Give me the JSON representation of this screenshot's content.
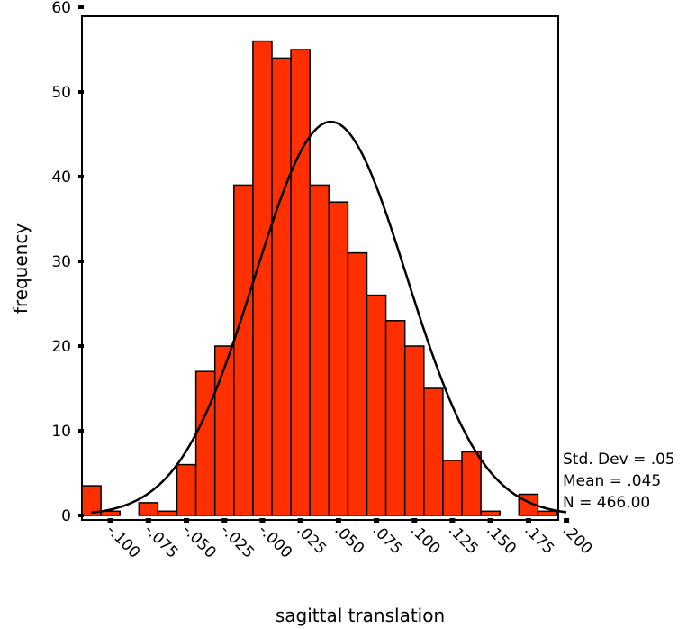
{
  "chart_data": {
    "type": "bar",
    "subtype": "histogram",
    "xlabel": "sagittal translation",
    "ylabel": "frequency",
    "x_ticks": [
      "-.100",
      "-.075",
      "-.050",
      "-.025",
      "-.000",
      ".025",
      ".050",
      ".075",
      ".100",
      ".125",
      ".150",
      ".175",
      ".200"
    ],
    "y_ticks": [
      "0",
      "10",
      "20",
      "30",
      "40",
      "50",
      "60"
    ],
    "ylim": [
      0,
      60
    ],
    "bin_centers": [
      -0.1125,
      -0.1,
      -0.0875,
      -0.075,
      -0.0625,
      -0.05,
      -0.0375,
      -0.025,
      -0.0125,
      0.0,
      0.0125,
      0.025,
      0.0375,
      0.05,
      0.0625,
      0.075,
      0.0875,
      0.1,
      0.1125,
      0.125,
      0.1375,
      0.15,
      0.1625,
      0.175,
      0.1875,
      0.2
    ],
    "values": [
      3.5,
      0.5,
      0,
      1.5,
      0.5,
      6,
      17,
      20,
      39,
      56,
      54,
      55,
      39,
      37,
      31,
      26,
      23,
      20,
      15,
      6.5,
      7.5,
      0.5,
      0,
      2.5,
      0.5,
      0
    ],
    "bar_color": "#ff3000",
    "normal_curve": {
      "mean": 0.045,
      "std": 0.05,
      "n": 466,
      "bin_width": 0.0125
    },
    "grid": false,
    "stats": {
      "std_dev": "Std. Dev = .05",
      "mean": "Mean = .045",
      "n": "N = 466.00"
    }
  }
}
